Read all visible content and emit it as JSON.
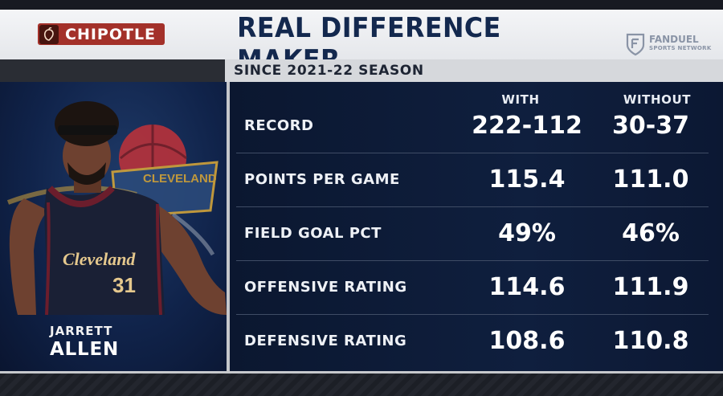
{
  "header": {
    "sponsor": "CHIPOTLE",
    "title": "REAL DIFFERENCE MAKER",
    "network_brand": "FANDUEL",
    "network_sub": "SPORTS NETWORK"
  },
  "subtitle": "SINCE 2021-22 SEASON",
  "player": {
    "first_name": "JARRETT",
    "last_name": "ALLEN",
    "jersey_text": "Cleveland",
    "jersey_number": "31",
    "team_logo_text": "CLEVELAND"
  },
  "columns": {
    "with": "WITH",
    "without": "WITHOUT"
  },
  "rows": [
    {
      "label": "RECORD",
      "with": "222-112",
      "without": "30-37"
    },
    {
      "label": "POINTS PER GAME",
      "with": "115.4",
      "without": "111.0"
    },
    {
      "label": "FIELD GOAL PCT",
      "with": "49%",
      "without": "46%"
    },
    {
      "label": "OFFENSIVE RATING",
      "with": "114.6",
      "without": "111.9"
    },
    {
      "label": "DEFENSIVE RATING",
      "with": "108.6",
      "without": "110.8"
    }
  ],
  "colors": {
    "title_navy": "#13284e",
    "sponsor_red": "#a3312a",
    "panel_navy": "#0f1f3e",
    "jersey_wine": "#6b1d2c"
  }
}
